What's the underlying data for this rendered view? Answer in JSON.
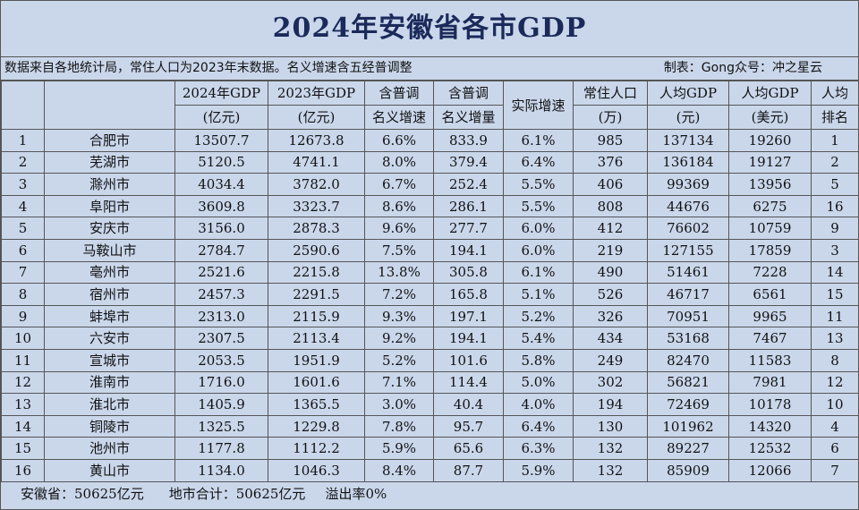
{
  "title": "2024年安徽省各市GDP",
  "note": {
    "left": "数据来自各地统计局，常住人口为2023年末数据。名义增速含五经普调整",
    "right": "制表：Gong众号：冲之星云"
  },
  "headers": {
    "gdp2024": [
      "2024年GDP",
      "(亿元)"
    ],
    "gdp2023": [
      "2023年GDP",
      "(亿元)"
    ],
    "nominal_rate": [
      "含普调",
      "名义增速"
    ],
    "nominal_inc": [
      "含普调",
      "名义增量"
    ],
    "real_rate": "实际增速",
    "population": [
      "常住人口",
      "(万)"
    ],
    "per_cap_cny": [
      "人均GDP",
      "(元)"
    ],
    "per_cap_usd": [
      "人均GDP",
      "(美元)"
    ],
    "rank": [
      "人均",
      "排名"
    ]
  },
  "rows": [
    {
      "no": "1",
      "city": "合肥市",
      "gdp2024": "13507.7",
      "gdp2023": "12673.8",
      "nrate": "6.6%",
      "ninc": "833.9",
      "rrate": "6.1%",
      "pop": "985",
      "pccny": "137134",
      "pcusd": "19260",
      "rank": "1"
    },
    {
      "no": "2",
      "city": "芜湖市",
      "gdp2024": "5120.5",
      "gdp2023": "4741.1",
      "nrate": "8.0%",
      "ninc": "379.4",
      "rrate": "6.4%",
      "pop": "376",
      "pccny": "136184",
      "pcusd": "19127",
      "rank": "2"
    },
    {
      "no": "3",
      "city": "滁州市",
      "gdp2024": "4034.4",
      "gdp2023": "3782.0",
      "nrate": "6.7%",
      "ninc": "252.4",
      "rrate": "5.5%",
      "pop": "406",
      "pccny": "99369",
      "pcusd": "13956",
      "rank": "5"
    },
    {
      "no": "4",
      "city": "阜阳市",
      "gdp2024": "3609.8",
      "gdp2023": "3323.7",
      "nrate": "8.6%",
      "ninc": "286.1",
      "rrate": "5.5%",
      "pop": "808",
      "pccny": "44676",
      "pcusd": "6275",
      "rank": "16"
    },
    {
      "no": "5",
      "city": "安庆市",
      "gdp2024": "3156.0",
      "gdp2023": "2878.3",
      "nrate": "9.6%",
      "ninc": "277.7",
      "rrate": "6.0%",
      "pop": "412",
      "pccny": "76602",
      "pcusd": "10759",
      "rank": "9"
    },
    {
      "no": "6",
      "city": "马鞍山市",
      "gdp2024": "2784.7",
      "gdp2023": "2590.6",
      "nrate": "7.5%",
      "ninc": "194.1",
      "rrate": "6.0%",
      "pop": "219",
      "pccny": "127155",
      "pcusd": "17859",
      "rank": "3"
    },
    {
      "no": "7",
      "city": "亳州市",
      "gdp2024": "2521.6",
      "gdp2023": "2215.8",
      "nrate": "13.8%",
      "ninc": "305.8",
      "rrate": "6.1%",
      "pop": "490",
      "pccny": "51461",
      "pcusd": "7228",
      "rank": "14"
    },
    {
      "no": "8",
      "city": "宿州市",
      "gdp2024": "2457.3",
      "gdp2023": "2291.5",
      "nrate": "7.2%",
      "ninc": "165.8",
      "rrate": "5.1%",
      "pop": "526",
      "pccny": "46717",
      "pcusd": "6561",
      "rank": "15"
    },
    {
      "no": "9",
      "city": "蚌埠市",
      "gdp2024": "2313.0",
      "gdp2023": "2115.9",
      "nrate": "9.3%",
      "ninc": "197.1",
      "rrate": "5.2%",
      "pop": "326",
      "pccny": "70951",
      "pcusd": "9965",
      "rank": "11"
    },
    {
      "no": "10",
      "city": "六安市",
      "gdp2024": "2307.5",
      "gdp2023": "2113.4",
      "nrate": "9.2%",
      "ninc": "194.1",
      "rrate": "5.4%",
      "pop": "434",
      "pccny": "53168",
      "pcusd": "7467",
      "rank": "13"
    },
    {
      "no": "11",
      "city": "宣城市",
      "gdp2024": "2053.5",
      "gdp2023": "1951.9",
      "nrate": "5.2%",
      "ninc": "101.6",
      "rrate": "5.8%",
      "pop": "249",
      "pccny": "82470",
      "pcusd": "11583",
      "rank": "8"
    },
    {
      "no": "12",
      "city": "淮南市",
      "gdp2024": "1716.0",
      "gdp2023": "1601.6",
      "nrate": "7.1%",
      "ninc": "114.4",
      "rrate": "5.0%",
      "pop": "302",
      "pccny": "56821",
      "pcusd": "7981",
      "rank": "12"
    },
    {
      "no": "13",
      "city": "淮北市",
      "gdp2024": "1405.9",
      "gdp2023": "1365.5",
      "nrate": "3.0%",
      "ninc": "40.4",
      "rrate": "4.0%",
      "pop": "194",
      "pccny": "72469",
      "pcusd": "10178",
      "rank": "10"
    },
    {
      "no": "14",
      "city": "铜陵市",
      "gdp2024": "1325.5",
      "gdp2023": "1229.8",
      "nrate": "7.8%",
      "ninc": "95.7",
      "rrate": "6.4%",
      "pop": "130",
      "pccny": "101962",
      "pcusd": "14320",
      "rank": "4"
    },
    {
      "no": "15",
      "city": "池州市",
      "gdp2024": "1177.8",
      "gdp2023": "1112.2",
      "nrate": "5.9%",
      "ninc": "65.6",
      "rrate": "6.3%",
      "pop": "132",
      "pccny": "89227",
      "pcusd": "12532",
      "rank": "6"
    },
    {
      "no": "16",
      "city": "黄山市",
      "gdp2024": "1134.0",
      "gdp2023": "1046.3",
      "nrate": "8.4%",
      "ninc": "87.7",
      "rrate": "5.9%",
      "pop": "132",
      "pccny": "85909",
      "pcusd": "12066",
      "rank": "7"
    }
  ],
  "footer": {
    "province": "安徽省：50625亿元",
    "sum": "地市合计：50625亿元",
    "overflow": "溢出率0%"
  }
}
